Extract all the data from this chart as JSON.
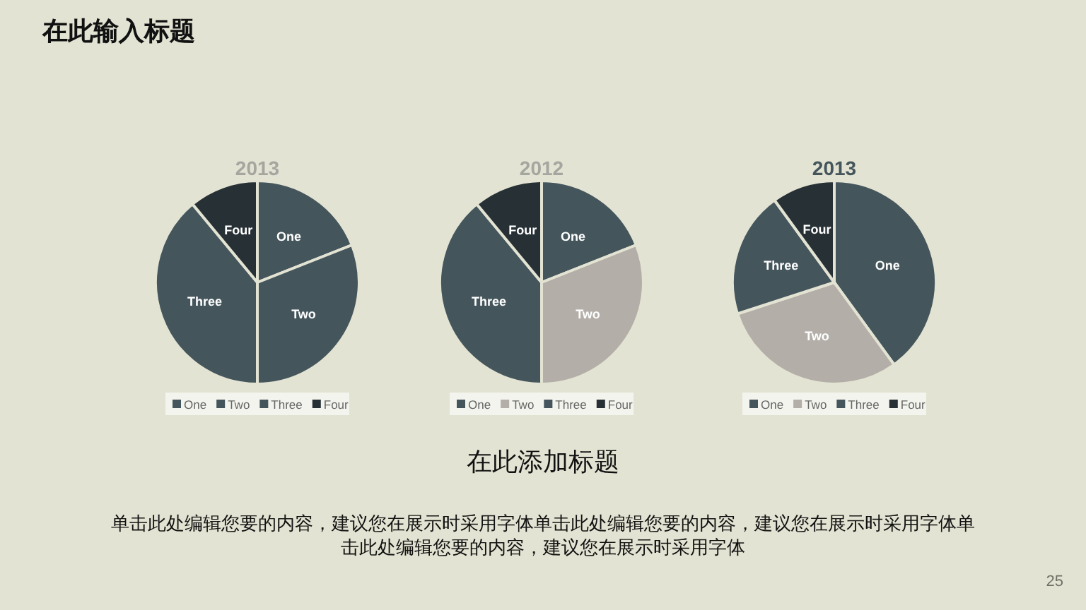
{
  "chart_data": [
    {
      "type": "pie",
      "title": "2013",
      "categories": [
        "One",
        "Two",
        "Three",
        "Four"
      ],
      "values": [
        19,
        31,
        39,
        11
      ],
      "colors": [
        "#44555c",
        "#44555c",
        "#44555c",
        "#263035"
      ],
      "legend": "bottom"
    },
    {
      "type": "pie",
      "title": "2012",
      "categories": [
        "One",
        "Two",
        "Three",
        "Four"
      ],
      "values": [
        19,
        31,
        39,
        11
      ],
      "colors": [
        "#44555c",
        "#b3aea8",
        "#44555c",
        "#263035"
      ],
      "legend": "bottom"
    },
    {
      "type": "pie",
      "title": "2013",
      "categories": [
        "One",
        "Two",
        "Three",
        "Four"
      ],
      "values": [
        40,
        30,
        20,
        10
      ],
      "colors": [
        "#44555c",
        "#b3aea8",
        "#44555c",
        "#263035"
      ],
      "legend": "bottom"
    },
    {
      "type": "other",
      "title": "在此输入标题",
      "subtitle": "在此添加标题",
      "annotations": [
        "单击此处编辑您要的内容，建议您在展示时采用字体单击此处编辑您要的内容，建议您在展示时采用字体单击此处编辑您要的内容，建议您在展示时采用字体",
        "25"
      ]
    }
  ]
}
